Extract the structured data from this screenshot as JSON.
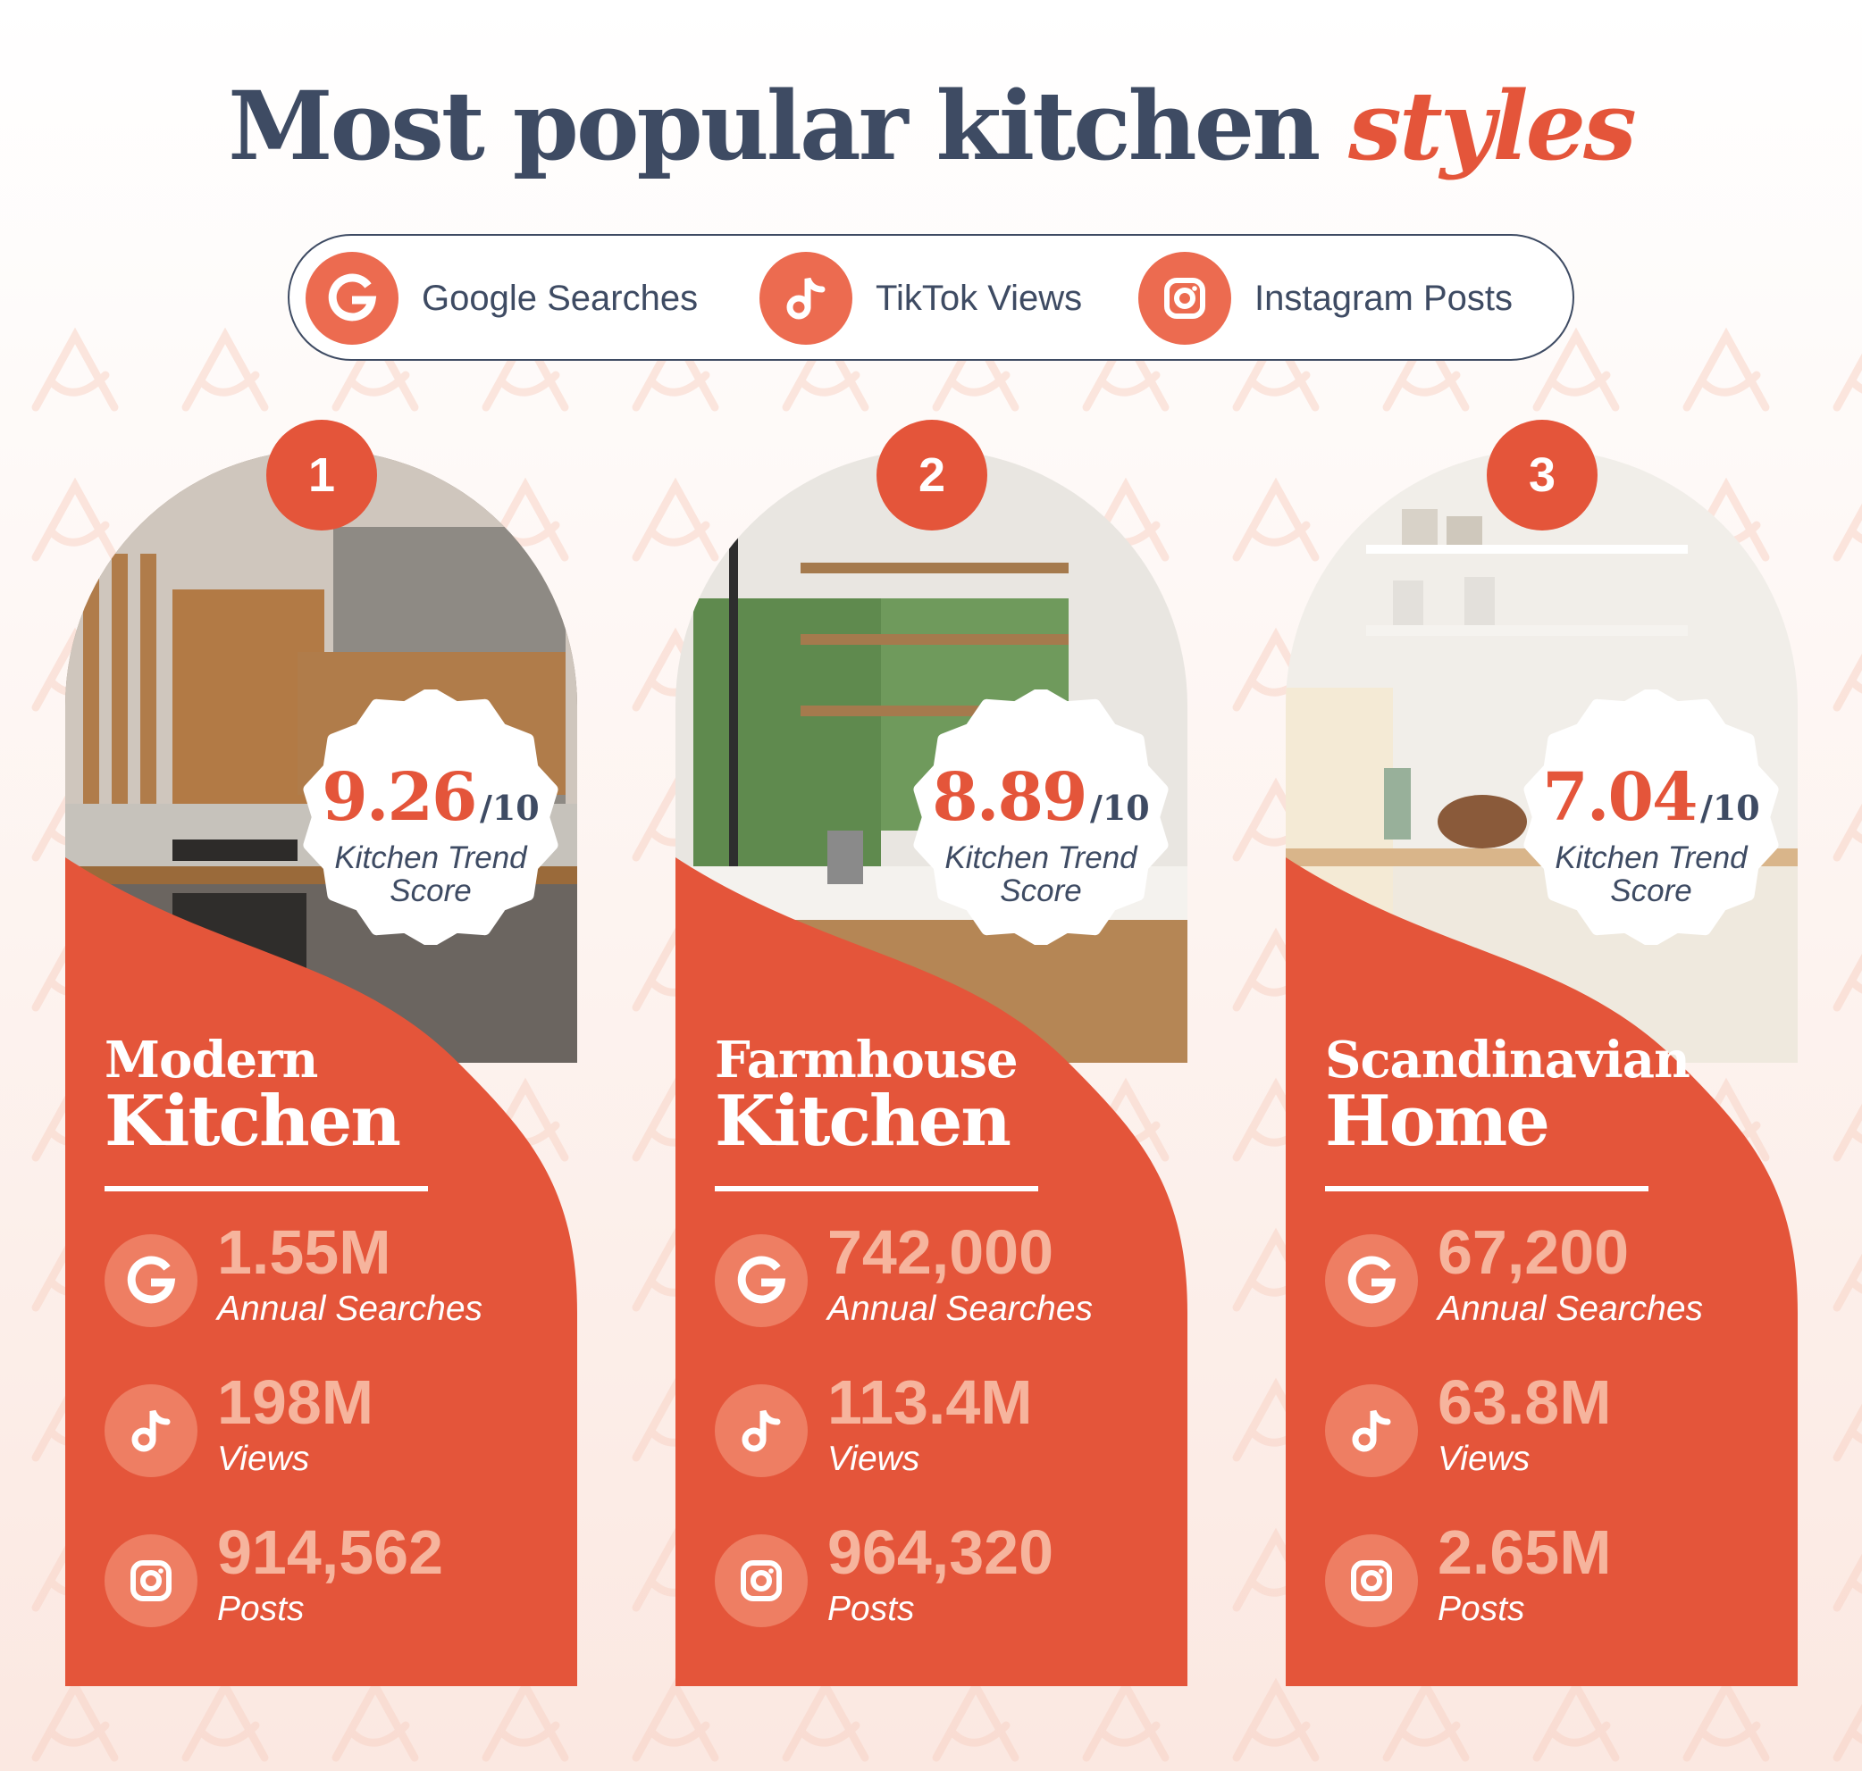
{
  "title": {
    "main": "Most popular kitchen",
    "accent": "styles"
  },
  "legend": [
    {
      "label": "Google Searches",
      "icon": "google-icon"
    },
    {
      "label": "TikTok Views",
      "icon": "tiktok-icon"
    },
    {
      "label": "Instagram Posts",
      "icon": "instagram-icon"
    }
  ],
  "colors": {
    "accent": "#e4553a",
    "navy": "#3e4b63",
    "stat_value": "#f6b49d"
  },
  "cards": [
    {
      "rank": "1",
      "score": {
        "value": "9.26",
        "max": "/10",
        "label_l1": "Kitchen Trend",
        "label_l2": "Score"
      },
      "name_l1": "Modern",
      "name_l2": "Kitchen",
      "stats": [
        {
          "value": "1.55M",
          "label": "Annual Searches"
        },
        {
          "value": "198M",
          "label": "Views"
        },
        {
          "value": "914,562",
          "label": "Posts"
        }
      ]
    },
    {
      "rank": "2",
      "score": {
        "value": "8.89",
        "max": "/10",
        "label_l1": "Kitchen Trend",
        "label_l2": "Score"
      },
      "name_l1": "Farmhouse",
      "name_l2": "Kitchen",
      "stats": [
        {
          "value": "742,000",
          "label": "Annual Searches"
        },
        {
          "value": "113.4M",
          "label": "Views"
        },
        {
          "value": "964,320",
          "label": "Posts"
        }
      ]
    },
    {
      "rank": "3",
      "score": {
        "value": "7.04",
        "max": "/10",
        "label_l1": "Kitchen Trend",
        "label_l2": "Score"
      },
      "name_l1": "Scandinavian",
      "name_l2": "Home",
      "stats": [
        {
          "value": "67,200",
          "label": "Annual Searches"
        },
        {
          "value": "63.8M",
          "label": "Views"
        },
        {
          "value": "2.65M",
          "label": "Posts"
        }
      ]
    }
  ]
}
